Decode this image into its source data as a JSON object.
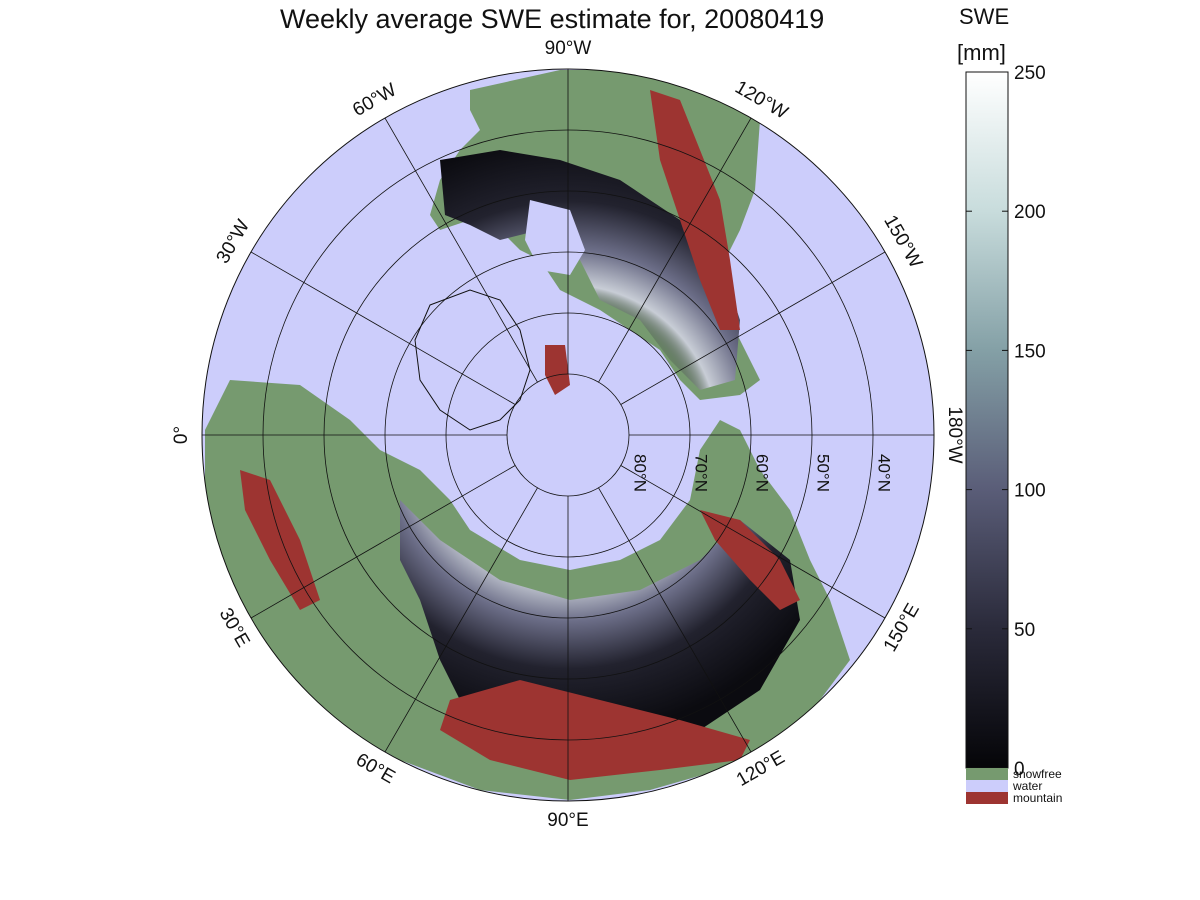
{
  "title": "Weekly average SWE estimate for, 20080419",
  "colorbar": {
    "title_line1": "SWE",
    "title_line2": "[mm]",
    "ticks": [
      {
        "label": "250",
        "value": 250
      },
      {
        "label": "200",
        "value": 200
      },
      {
        "label": "150",
        "value": 150
      },
      {
        "label": "100",
        "value": 100
      },
      {
        "label": "50",
        "value": 50
      },
      {
        "label": "0",
        "value": 0
      }
    ],
    "range": [
      0,
      250
    ]
  },
  "legend": [
    {
      "label": "snowfree",
      "color": "#769a6f"
    },
    {
      "label": "water",
      "color": "#cccdfb"
    },
    {
      "label": "mountain",
      "color": "#9d3431"
    }
  ],
  "longitude_labels": [
    {
      "text": "90°W",
      "deg": 90,
      "hemi": "W"
    },
    {
      "text": "120°W",
      "deg": 120,
      "hemi": "W"
    },
    {
      "text": "150°W",
      "deg": 150,
      "hemi": "W"
    },
    {
      "text": "180°W",
      "deg": 180,
      "hemi": "W"
    },
    {
      "text": "150°E",
      "deg": 150,
      "hemi": "E"
    },
    {
      "text": "120°E",
      "deg": 120,
      "hemi": "E"
    },
    {
      "text": "90°E",
      "deg": 90,
      "hemi": "E"
    },
    {
      "text": "60°E",
      "deg": 60,
      "hemi": "E"
    },
    {
      "text": "30°E",
      "deg": 30,
      "hemi": "E"
    },
    {
      "text": "0°",
      "deg": 0,
      "hemi": ""
    },
    {
      "text": "30°W",
      "deg": 30,
      "hemi": "W"
    },
    {
      "text": "60°W",
      "deg": 60,
      "hemi": "W"
    }
  ],
  "latitude_labels": [
    {
      "text": "80°N",
      "lat": 80
    },
    {
      "text": "70°N",
      "lat": 70
    },
    {
      "text": "60°N",
      "lat": 60
    },
    {
      "text": "50°N",
      "lat": 50
    },
    {
      "text": "40°N",
      "lat": 40
    }
  ],
  "colors": {
    "water": "#cccdfb",
    "snowfree": "#769a6f",
    "mountain": "#9d3431",
    "swe_low": "#0b0b10",
    "swe_high": "#ffffff"
  }
}
